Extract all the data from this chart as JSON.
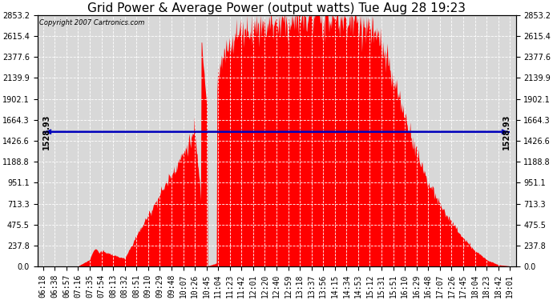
{
  "title": "Grid Power & Average Power (output watts) Tue Aug 28 19:23",
  "copyright": "Copyright 2007 Cartronics.com",
  "avg_power": 1528.93,
  "y_max": 2853.2,
  "y_min": 0.0,
  "y_ticks": [
    0.0,
    237.8,
    475.5,
    713.3,
    951.1,
    1188.8,
    1426.6,
    1664.3,
    1902.1,
    2139.9,
    2377.6,
    2615.4,
    2853.2
  ],
  "x_labels": [
    "06:18",
    "06:38",
    "06:57",
    "07:16",
    "07:35",
    "07:54",
    "08:13",
    "08:32",
    "08:51",
    "09:10",
    "09:29",
    "09:48",
    "10:07",
    "10:26",
    "10:45",
    "11:04",
    "11:23",
    "11:42",
    "12:01",
    "12:20",
    "12:40",
    "12:59",
    "13:18",
    "13:37",
    "13:56",
    "14:15",
    "14:34",
    "14:53",
    "15:12",
    "15:31",
    "15:51",
    "16:10",
    "16:29",
    "16:48",
    "17:07",
    "17:26",
    "17:45",
    "18:04",
    "18:23",
    "18:42",
    "19:01"
  ],
  "background_color": "#ffffff",
  "plot_bg_color": "#d8d8d8",
  "fill_color": "#ff0000",
  "line_color": "#0000bb",
  "grid_color": "#ffffff",
  "title_fontsize": 11,
  "tick_fontsize": 7,
  "y_values": [
    5,
    5,
    5,
    5,
    80,
    180,
    130,
    90,
    350,
    580,
    820,
    1050,
    1280,
    1530,
    50,
    2200,
    2550,
    2680,
    2720,
    2750,
    2780,
    2800,
    2820,
    2830,
    2840,
    2810,
    2790,
    2760,
    2700,
    2500,
    2100,
    1700,
    1300,
    950,
    700,
    500,
    320,
    180,
    80,
    20,
    5
  ]
}
